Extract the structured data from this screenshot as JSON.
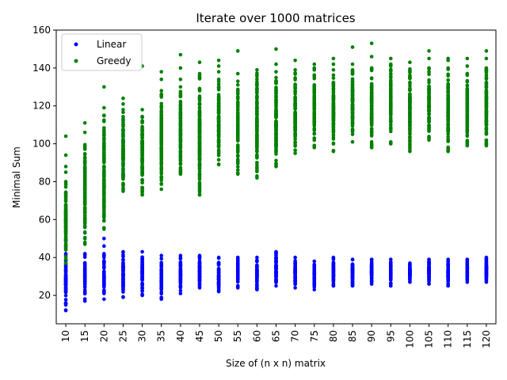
{
  "chart_data": {
    "type": "scatter",
    "title": "Iterate over 1000 matrices",
    "xlabel": "Size of (n x n) matrix",
    "ylabel": "Minimal Sum",
    "categories": [
      "10",
      "15",
      "20",
      "25",
      "30",
      "35",
      "40",
      "45",
      "50",
      "55",
      "60",
      "65",
      "70",
      "75",
      "80",
      "85",
      "90",
      "95",
      "100",
      "105",
      "110",
      "115",
      "120"
    ],
    "ylim": [
      5,
      160
    ],
    "yticks": [
      20,
      40,
      60,
      80,
      100,
      120,
      140,
      160
    ],
    "grid": false,
    "legend_position": "top-left",
    "series": [
      {
        "name": "Linear",
        "color": "#0000ff",
        "ranges": [
          {
            "x": "10",
            "min": 12,
            "max": 42,
            "outliers": []
          },
          {
            "x": "15",
            "min": 17,
            "max": 42,
            "outliers": [
              53
            ]
          },
          {
            "x": "20",
            "min": 18,
            "max": 42,
            "outliers": [
              46,
              50
            ]
          },
          {
            "x": "25",
            "min": 19,
            "max": 43,
            "outliers": []
          },
          {
            "x": "30",
            "min": 20,
            "max": 43,
            "outliers": []
          },
          {
            "x": "35",
            "min": 18,
            "max": 41,
            "outliers": []
          },
          {
            "x": "40",
            "min": 21,
            "max": 41,
            "outliers": []
          },
          {
            "x": "45",
            "min": 24,
            "max": 41,
            "outliers": []
          },
          {
            "x": "50",
            "min": 22,
            "max": 40,
            "outliers": []
          },
          {
            "x": "55",
            "min": 24,
            "max": 40,
            "outliers": []
          },
          {
            "x": "60",
            "min": 23,
            "max": 40,
            "outliers": []
          },
          {
            "x": "65",
            "min": 25,
            "max": 43,
            "outliers": []
          },
          {
            "x": "70",
            "min": 24,
            "max": 40,
            "outliers": []
          },
          {
            "x": "75",
            "min": 23,
            "max": 38,
            "outliers": []
          },
          {
            "x": "80",
            "min": 25,
            "max": 40,
            "outliers": []
          },
          {
            "x": "85",
            "min": 25,
            "max": 39,
            "outliers": []
          },
          {
            "x": "90",
            "min": 26,
            "max": 39,
            "outliers": []
          },
          {
            "x": "95",
            "min": 25,
            "max": 39,
            "outliers": []
          },
          {
            "x": "100",
            "min": 27,
            "max": 37,
            "outliers": []
          },
          {
            "x": "105",
            "min": 26,
            "max": 39,
            "outliers": []
          },
          {
            "x": "110",
            "min": 25,
            "max": 39,
            "outliers": []
          },
          {
            "x": "115",
            "min": 27,
            "max": 39,
            "outliers": []
          },
          {
            "x": "120",
            "min": 27,
            "max": 40,
            "outliers": []
          }
        ]
      },
      {
        "name": "Greedy",
        "color": "#008000",
        "ranges": [
          {
            "x": "10",
            "min": 37,
            "max": 80,
            "outliers": [
              85,
              88,
              94,
              104
            ]
          },
          {
            "x": "15",
            "min": 47,
            "max": 106,
            "outliers": [
              111
            ]
          },
          {
            "x": "20",
            "min": 55,
            "max": 115,
            "outliers": [
              119,
              130
            ]
          },
          {
            "x": "25",
            "min": 75,
            "max": 118,
            "outliers": [
              121,
              124
            ]
          },
          {
            "x": "30",
            "min": 73,
            "max": 118,
            "outliers": [
              141
            ]
          },
          {
            "x": "35",
            "min": 76,
            "max": 128,
            "outliers": [
              134,
              138
            ]
          },
          {
            "x": "40",
            "min": 84,
            "max": 130,
            "outliers": [
              134,
              140,
              147
            ]
          },
          {
            "x": "45",
            "min": 73,
            "max": 137,
            "outliers": [
              143
            ]
          },
          {
            "x": "50",
            "min": 89,
            "max": 134,
            "outliers": [
              138,
              141,
              144
            ]
          },
          {
            "x": "55",
            "min": 84,
            "max": 133,
            "outliers": [
              137,
              149
            ]
          },
          {
            "x": "60",
            "min": 82,
            "max": 139,
            "outliers": []
          },
          {
            "x": "65",
            "min": 88,
            "max": 138,
            "outliers": [
              142,
              150
            ]
          },
          {
            "x": "70",
            "min": 95,
            "max": 139,
            "outliers": [
              144
            ]
          },
          {
            "x": "75",
            "min": 98,
            "max": 140,
            "outliers": [
              142
            ]
          },
          {
            "x": "80",
            "min": 96,
            "max": 139,
            "outliers": [
              142,
              145
            ]
          },
          {
            "x": "85",
            "min": 101,
            "max": 139,
            "outliers": [
              142,
              151
            ]
          },
          {
            "x": "90",
            "min": 98,
            "max": 140,
            "outliers": [
              146,
              153
            ]
          },
          {
            "x": "95",
            "min": 100,
            "max": 142,
            "outliers": [
              145
            ]
          },
          {
            "x": "100",
            "min": 96,
            "max": 143,
            "outliers": []
          },
          {
            "x": "105",
            "min": 102,
            "max": 140,
            "outliers": [
              145,
              149
            ]
          },
          {
            "x": "110",
            "min": 96,
            "max": 140,
            "outliers": [
              144,
              145
            ]
          },
          {
            "x": "115",
            "min": 99,
            "max": 137,
            "outliers": [
              141,
              145
            ]
          },
          {
            "x": "120",
            "min": 99,
            "max": 140,
            "outliers": [
              145,
              149
            ]
          }
        ]
      }
    ]
  }
}
